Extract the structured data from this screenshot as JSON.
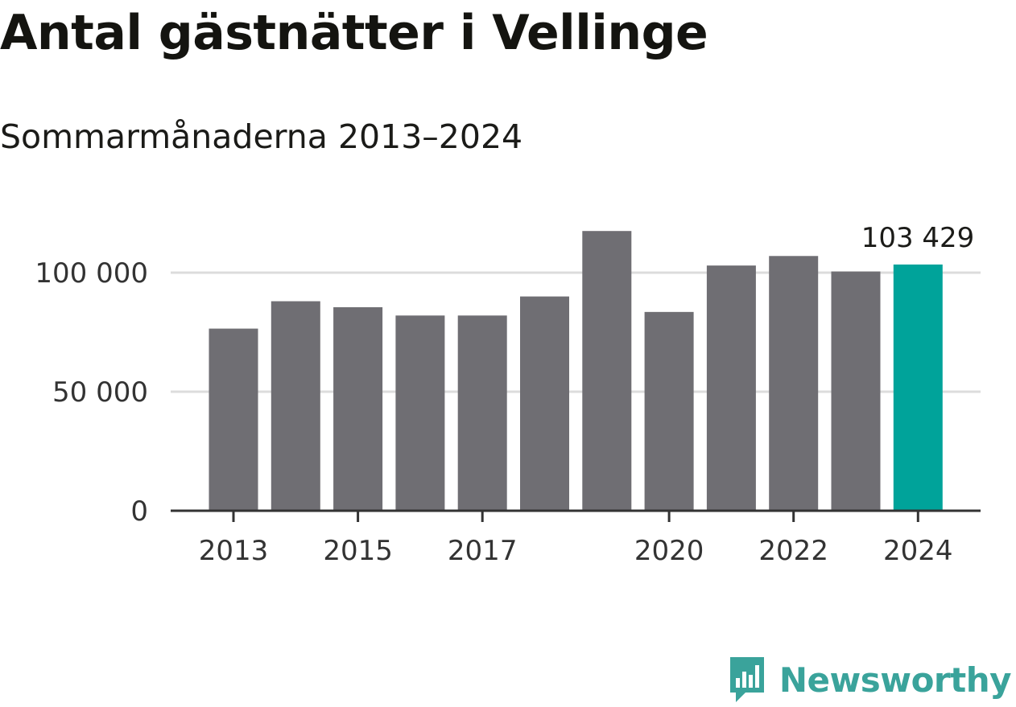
{
  "title": "Antal gästnätter i Vellinge",
  "subtitle": "Sommarmånaderna 2013–2024",
  "brand": {
    "name": "Newsworthy",
    "icon": "bar-chart-speech-bubble-icon",
    "color": "#3aa39b"
  },
  "chart_data": {
    "type": "bar",
    "categories": [
      2013,
      2014,
      2015,
      2016,
      2017,
      2018,
      2019,
      2020,
      2021,
      2022,
      2023,
      2024
    ],
    "values": [
      76500,
      88000,
      85500,
      82000,
      82000,
      90000,
      117500,
      83500,
      103000,
      107000,
      100500,
      103429
    ],
    "highlight_index": 11,
    "highlight_label": "103 429",
    "x_tick_labels": [
      "2013",
      "2015",
      "2017",
      "2020",
      "2022",
      "2024"
    ],
    "x_tick_values": [
      2013,
      2015,
      2017,
      2020,
      2022,
      2024
    ],
    "y_ticks": [
      0,
      50000,
      100000
    ],
    "y_tick_labels": [
      "0",
      "50 000",
      "100 000"
    ],
    "ylim": [
      0,
      125000
    ],
    "grid": true,
    "colors": {
      "bar": "#6f6e73",
      "highlight": "#00a39a",
      "grid": "#dcdcdc",
      "axis": "#333333"
    }
  }
}
